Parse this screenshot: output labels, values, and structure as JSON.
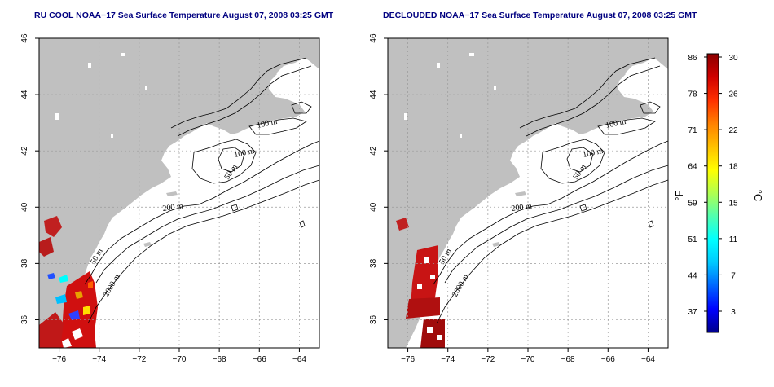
{
  "panels": [
    {
      "title": "RU COOL NOAA−17 Sea Surface Temperature August 07, 2008 03:25 GMT",
      "mode": "raw"
    },
    {
      "title": "DECLOUDED NOAA−17 Sea Surface Temperature August 07, 2008 03:25 GMT",
      "mode": "declouded"
    }
  ],
  "axes": {
    "x_ticks": [
      "−76",
      "−74",
      "−72",
      "−70",
      "−68",
      "−66",
      "−64"
    ],
    "y_ticks": [
      "36",
      "38",
      "40",
      "42",
      "44",
      "46"
    ],
    "lon_range": [
      -77,
      -63
    ],
    "lat_range": [
      35,
      46
    ]
  },
  "contour_labels": [
    {
      "text": "100 m"
    },
    {
      "text": "100 m"
    },
    {
      "text": "50 m"
    },
    {
      "text": "200 m"
    },
    {
      "text": "50 m"
    },
    {
      "text": "2000 m"
    }
  ],
  "colorbar": {
    "f_label": "°F",
    "c_label": "°C",
    "f_ticks": [
      "86",
      "78",
      "71",
      "64",
      "59",
      "51",
      "44",
      "37"
    ],
    "c_ticks": [
      "30",
      "26",
      "22",
      "18",
      "15",
      "11",
      "7",
      "3"
    ],
    "colors": [
      "#00008b",
      "#0000ff",
      "#0064ff",
      "#00c8ff",
      "#00ffff",
      "#50ffb0",
      "#b0ff50",
      "#ffff00",
      "#ffc000",
      "#ff8000",
      "#ff3000",
      "#d00000",
      "#8b0000"
    ]
  }
}
